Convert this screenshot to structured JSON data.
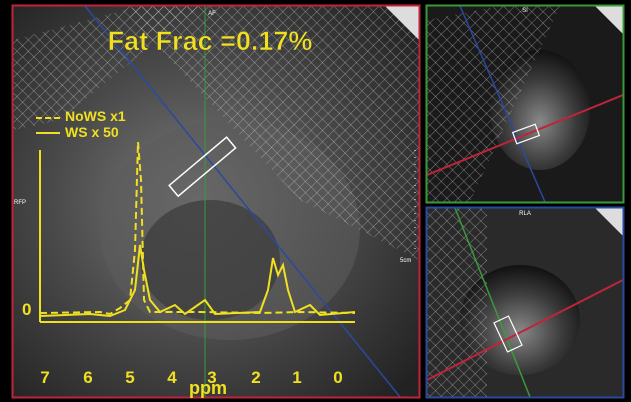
{
  "main_panel": {
    "title": "Fat Frac =0.17%",
    "top_label": "AF",
    "side_label": "RFP",
    "scale_label": "5cm",
    "legend": [
      "NoWS x1",
      "WS x 50"
    ],
    "x_axis_label": "ppm",
    "x_ticks": [
      "7",
      "6",
      "5",
      "4",
      "3",
      "2",
      "1",
      "0"
    ],
    "y_zero_label": "0"
  },
  "top_right_panel": {
    "top_label": "SI"
  },
  "bottom_right_panel": {
    "top_label": "RLA"
  }
}
